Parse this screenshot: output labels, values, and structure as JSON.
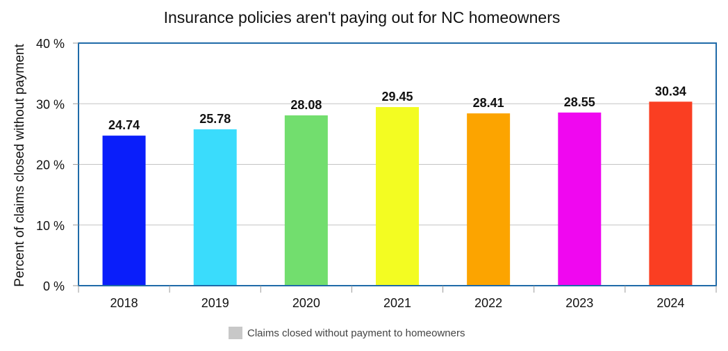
{
  "chart_data": {
    "type": "bar",
    "title": "Insurance policies aren't paying out for NC homeowners",
    "xlabel": "",
    "ylabel": "Percent of claims closed without payment",
    "categories": [
      "2018",
      "2019",
      "2020",
      "2021",
      "2022",
      "2023",
      "2024"
    ],
    "series": [
      {
        "name": "Claims closed without payment to homeowners",
        "values": [
          24.74,
          25.78,
          28.08,
          29.45,
          28.41,
          28.55,
          30.34
        ],
        "value_labels": [
          "24.74",
          "25.78",
          "28.08",
          "29.45",
          "28.41",
          "28.55",
          "30.34"
        ]
      }
    ],
    "bar_colors": [
      "#0a1efa",
      "#3adcfc",
      "#72de6e",
      "#f3fc22",
      "#fca400",
      "#f007f0",
      "#fa3e22"
    ],
    "ylim": [
      0,
      40
    ],
    "yticks": [
      0,
      10,
      20,
      30,
      40
    ],
    "ytick_labels": [
      "0 %",
      "10 %",
      "20 %",
      "30 %",
      "40 %"
    ],
    "grid": true,
    "legend": {
      "position": "bottom",
      "swatch_color": "#c8c8c8"
    },
    "frame_color": "#1f6aa8",
    "grid_color": "#c4c4c4"
  }
}
